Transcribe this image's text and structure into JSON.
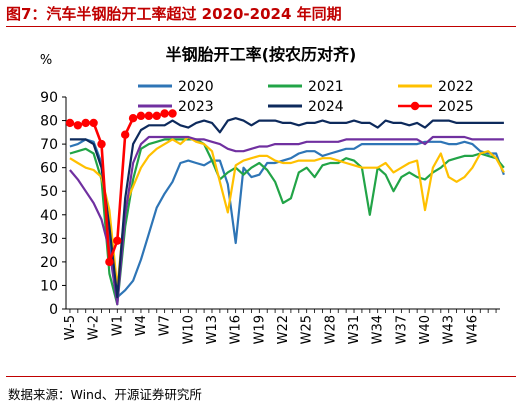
{
  "figure_label": "图7：汽车半钢胎开工率超过 2020-2024 年同期",
  "source_note": "数据来源：Wind、开源证券研究所",
  "chart_data": {
    "type": "line",
    "title": "半钢胎开工率(按农历对齐)",
    "ylabel": "%",
    "xlabel": "",
    "ylim": [
      0,
      90
    ],
    "yticks": [
      0,
      10,
      20,
      30,
      40,
      50,
      60,
      70,
      80,
      90
    ],
    "grid": false,
    "legend_position": "top",
    "x_ticks": [
      "W-5",
      "W-2",
      "W1",
      "W4",
      "W7",
      "W10",
      "W13",
      "W16",
      "W19",
      "W22",
      "W25",
      "W28",
      "W31",
      "W34",
      "W37",
      "W40",
      "W43",
      "W46"
    ],
    "x_start": -5,
    "series": [
      {
        "name": "2020",
        "color": "#2E75B6",
        "marker": false,
        "x_start": -5,
        "values": [
          69,
          70,
          72,
          71,
          62,
          30,
          5,
          8,
          12,
          21,
          32,
          43,
          49,
          54,
          62,
          63,
          62,
          61,
          63,
          63,
          53,
          28,
          60,
          56,
          57,
          62,
          62,
          63,
          64,
          66,
          67,
          67,
          65,
          66,
          67,
          68,
          68,
          70,
          70,
          70,
          70,
          70,
          70,
          70,
          70,
          71,
          71,
          71,
          70,
          70,
          71,
          70,
          67,
          66,
          66,
          57
        ]
      },
      {
        "name": "2021",
        "color": "#22A447",
        "marker": false,
        "x_start": -5,
        "values": [
          66,
          67,
          68,
          66,
          55,
          15,
          2,
          35,
          55,
          68,
          70,
          71,
          72,
          72,
          72,
          72,
          72,
          70,
          63,
          55,
          58,
          60,
          57,
          60,
          62,
          59,
          54,
          45,
          47,
          58,
          60,
          56,
          61,
          62,
          62,
          64,
          63,
          60,
          40,
          60,
          57,
          50,
          56,
          58,
          56,
          55,
          58,
          60,
          63,
          64,
          65,
          65,
          66,
          65,
          64,
          60
        ]
      },
      {
        "name": "2022",
        "color": "#FFC000",
        "marker": false,
        "x_start": -5,
        "values": [
          64,
          62,
          60,
          59,
          56,
          42,
          9,
          44,
          52,
          60,
          65,
          68,
          70,
          72,
          70,
          73,
          71,
          70,
          67,
          54,
          41,
          61,
          63,
          64,
          65,
          65,
          63,
          62,
          62,
          63,
          63,
          63,
          64,
          64,
          63,
          62,
          61,
          60,
          60,
          60,
          62,
          58,
          60,
          62,
          63,
          42,
          60,
          66,
          56,
          54,
          56,
          60,
          66,
          67,
          64,
          58
        ]
      },
      {
        "name": "2023",
        "color": "#7030A0",
        "marker": false,
        "x_start": -5,
        "values": [
          59,
          55,
          50,
          45,
          38,
          25,
          2,
          40,
          62,
          70,
          73,
          73,
          73,
          73,
          73,
          73,
          72,
          72,
          71,
          70,
          68,
          67,
          67,
          68,
          69,
          69,
          70,
          70,
          70,
          70,
          71,
          71,
          71,
          71,
          71,
          72,
          72,
          72,
          72,
          72,
          72,
          72,
          72,
          72,
          72,
          70,
          73,
          73,
          73,
          73,
          73,
          72,
          72,
          72,
          72,
          72
        ]
      },
      {
        "name": "2024",
        "color": "#0D2A5C",
        "marker": false,
        "x_start": -5,
        "values": [
          72,
          72,
          72,
          70,
          60,
          35,
          5,
          47,
          70,
          76,
          78,
          78,
          78,
          80,
          78,
          77,
          79,
          80,
          79,
          75,
          80,
          81,
          80,
          78,
          80,
          80,
          80,
          79,
          79,
          78,
          79,
          79,
          80,
          79,
          79,
          79,
          80,
          79,
          79,
          77,
          80,
          79,
          79,
          78,
          79,
          77,
          80,
          80,
          80,
          79,
          79,
          79,
          79,
          79,
          79,
          79
        ]
      },
      {
        "name": "2025",
        "color": "#FF0000",
        "marker": true,
        "x_start": -5,
        "values": [
          79,
          78,
          79,
          79,
          70,
          20,
          29,
          74,
          81,
          82,
          82,
          82,
          83,
          83
        ]
      }
    ]
  }
}
